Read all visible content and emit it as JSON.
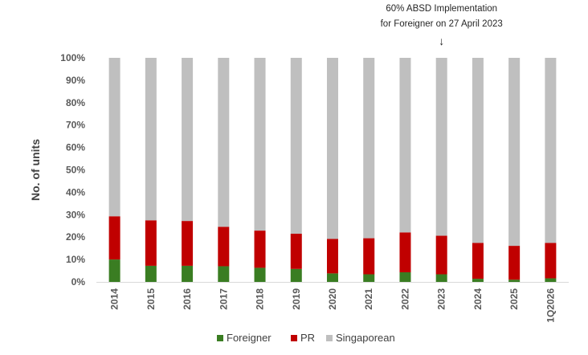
{
  "chart_data": {
    "type": "bar",
    "stacked": true,
    "normalized": true,
    "title": "",
    "xlabel": "",
    "ylabel": "No. of units",
    "ylim": [
      0,
      100
    ],
    "yticks": [
      "0%",
      "10%",
      "20%",
      "30%",
      "40%",
      "50%",
      "60%",
      "70%",
      "80%",
      "90%",
      "100%"
    ],
    "categories": [
      "2014",
      "2015",
      "2016",
      "2017",
      "2018",
      "2019",
      "2020",
      "2021",
      "2022",
      "2023",
      "2024",
      "2025",
      "1Q2026"
    ],
    "series": [
      {
        "name": "Foreigner",
        "color": "#3a7d22",
        "values": [
          10.0,
          7.2,
          7.2,
          7.0,
          6.3,
          5.8,
          3.8,
          3.4,
          4.3,
          3.4,
          1.4,
          1.0,
          1.6
        ]
      },
      {
        "name": "PR",
        "color": "#c00000",
        "values": [
          19.3,
          20.3,
          20.0,
          17.6,
          16.6,
          15.7,
          15.4,
          16.1,
          17.8,
          17.2,
          16.0,
          15.1,
          15.8
        ]
      },
      {
        "name": "Singaporean",
        "color": "#bfbfbf",
        "values": [
          70.7,
          72.5,
          72.8,
          75.4,
          77.1,
          78.5,
          80.8,
          80.5,
          77.9,
          79.4,
          82.6,
          83.9,
          82.6
        ]
      }
    ],
    "grid": false,
    "legend": "bottom",
    "annotation": {
      "line1": "60% ABSD Implementation",
      "line2": "for Foreigner on 27 April 2023",
      "arrow": "↓",
      "category": "2023"
    }
  }
}
